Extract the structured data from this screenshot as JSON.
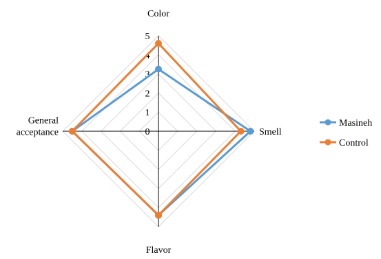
{
  "chart_data": {
    "type": "radar",
    "title": "",
    "categories": [
      "Color",
      "Smell",
      "Flavor",
      "General acceptance"
    ],
    "category_display": [
      "Color",
      "Smell",
      "Flavor",
      "General\nacceptance"
    ],
    "r_range": [
      0,
      5
    ],
    "ticks": [
      "0",
      "1",
      "2",
      "3",
      "4",
      "5"
    ],
    "grid": true,
    "legend_position": "right",
    "series": [
      {
        "name": "Masineh",
        "values": [
          3.25,
          4.8,
          4.4,
          4.5
        ],
        "color": "#5B9BD5"
      },
      {
        "name": "Control",
        "values": [
          4.6,
          4.3,
          4.4,
          4.5
        ],
        "color": "#ED7D31"
      }
    ]
  }
}
